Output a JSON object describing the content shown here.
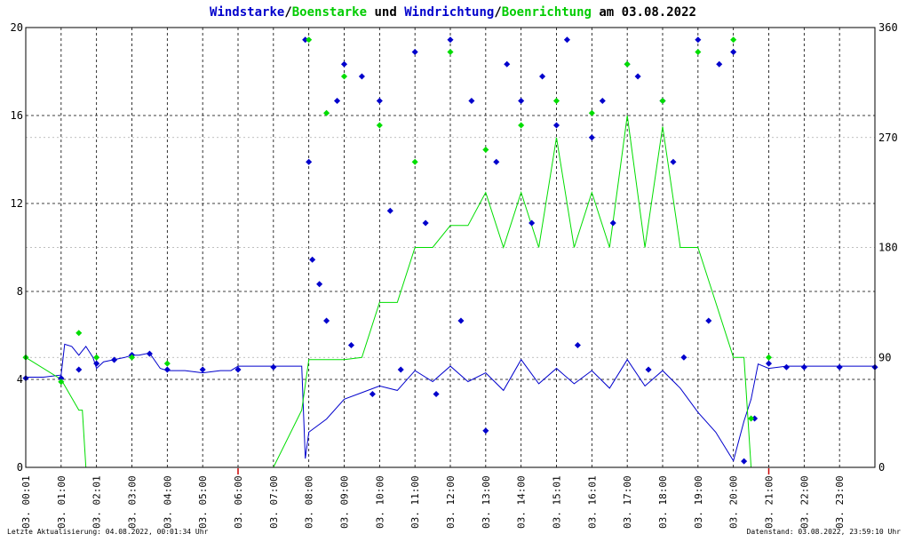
{
  "title_parts": [
    {
      "text": "Windstarke",
      "color": "#0000cc"
    },
    {
      "text": "/",
      "color": "#000000"
    },
    {
      "text": "Boenstarke",
      "color": "#00cc00"
    },
    {
      "text": " und ",
      "color": "#000000"
    },
    {
      "text": "Windrichtung",
      "color": "#0000cc"
    },
    {
      "text": "/",
      "color": "#000000"
    },
    {
      "text": "Boenrichtung",
      "color": "#00cc00"
    },
    {
      "text": " am 03.08.2022",
      "color": "#000000"
    }
  ],
  "footer": {
    "left": "Letzte Aktualisierung: 04.08.2022, 00:01:34 Uhr",
    "right": "Datenstand: 03.08.2022, 23:59:10 Uhr"
  },
  "colors": {
    "wind": "#0000cc",
    "gust": "#00dd00",
    "grid": "#000000",
    "minor_grid": "#aaaaaa",
    "marker": "#cc0000"
  },
  "chart_data": {
    "type": "line",
    "title": "Windstarke/Boenstarke und Windrichtung/Boenrichtung am 03.08.2022",
    "x_ticks": [
      "03. 00:01",
      "03. 01:00",
      "03. 02:01",
      "03. 03:00",
      "03. 04:00",
      "03. 05:00",
      "03. 06:00",
      "03. 07:00",
      "03. 08:00",
      "03. 09:00",
      "03. 10:00",
      "03. 11:00",
      "03. 12:00",
      "03. 13:00",
      "03. 14:00",
      "03. 15:01",
      "03. 16:01",
      "03. 17:00",
      "03. 18:00",
      "03. 19:00",
      "03. 20:00",
      "03. 21:00",
      "03. 22:00",
      "03. 23:00"
    ],
    "xlim_hours": [
      0,
      24
    ],
    "y_left": {
      "ticks": [
        "0",
        "4",
        "8",
        "12",
        "16",
        "20"
      ],
      "ylim": [
        0,
        20
      ]
    },
    "y_right": {
      "ticks": [
        "0",
        "90",
        "180",
        "270",
        "360"
      ],
      "ylim": [
        0,
        360
      ]
    },
    "grid": true,
    "series": [
      {
        "name": "Windstarke",
        "color": "#0000cc",
        "axis": "left",
        "x": [
          0.0,
          0.5,
          1.0,
          1.1,
          1.3,
          1.5,
          1.6,
          1.7,
          1.9,
          2.0,
          2.2,
          2.5,
          2.8,
          3.0,
          3.2,
          3.5,
          3.8,
          4.0,
          4.5,
          5.0,
          5.5,
          5.8,
          6.0,
          6.5,
          7.0,
          7.5,
          7.8,
          7.9,
          8.0,
          8.5,
          9.0,
          9.5,
          10.0,
          10.5,
          11.0,
          11.5,
          12.0,
          12.5,
          13.0,
          13.5,
          14.0,
          14.5,
          15.0,
          15.5,
          16.0,
          16.5,
          17.0,
          17.5,
          18.0,
          18.5,
          19.0,
          19.5,
          20.0,
          20.3,
          20.5,
          20.7,
          21.0,
          21.5,
          22.0,
          22.5,
          23.0,
          23.5,
          24.0
        ],
        "y": [
          4.1,
          4.1,
          4.2,
          5.6,
          5.5,
          5.1,
          5.3,
          5.5,
          5.0,
          4.5,
          4.8,
          4.9,
          5.0,
          5.1,
          5.1,
          5.2,
          4.5,
          4.4,
          4.4,
          4.3,
          4.4,
          4.4,
          4.6,
          4.6,
          4.6,
          4.6,
          4.6,
          0.4,
          1.6,
          2.2,
          3.1,
          3.4,
          3.7,
          3.5,
          4.4,
          3.9,
          4.6,
          3.9,
          4.3,
          3.5,
          4.9,
          3.8,
          4.5,
          3.8,
          4.4,
          3.6,
          4.9,
          3.7,
          4.4,
          3.6,
          2.5,
          1.6,
          0.3,
          2.1,
          3.1,
          4.7,
          4.5,
          4.6,
          4.6,
          4.6,
          4.6,
          4.6,
          4.6
        ]
      },
      {
        "name": "Boenstarke",
        "color": "#00dd00",
        "axis": "left",
        "x": [
          0.0,
          1.0,
          1.5,
          1.6,
          1.7,
          2.0,
          3.0,
          4.0,
          5.0,
          6.0,
          7.0,
          7.8,
          8.0,
          8.5,
          9.0,
          9.5,
          10.0,
          10.5,
          11.0,
          11.5,
          12.0,
          12.5,
          13.0,
          13.5,
          14.0,
          14.5,
          15.0,
          15.5,
          16.0,
          16.5,
          17.0,
          17.5,
          18.0,
          18.5,
          19.0,
          19.5,
          20.0,
          20.3,
          20.5,
          21.0
        ],
        "y": [
          5.0,
          4.0,
          2.6,
          2.6,
          0.0,
          0.0,
          0.0,
          0.0,
          0.0,
          0.0,
          0.0,
          2.6,
          4.9,
          4.9,
          4.9,
          5.0,
          7.5,
          7.5,
          10.0,
          10.0,
          11.0,
          11.0,
          12.5,
          10.0,
          12.5,
          10.0,
          15.0,
          10.0,
          12.5,
          10.0,
          16.0,
          10.0,
          15.5,
          10.0,
          10.0,
          7.5,
          5.0,
          5.0,
          0.0,
          0.0
        ]
      },
      {
        "name": "Windrichtung",
        "color": "#0000cc",
        "axis": "right",
        "kind": "points",
        "x": [
          0.0,
          1.0,
          1.5,
          2.0,
          2.5,
          3.0,
          3.5,
          4.0,
          5.0,
          6.0,
          7.0,
          7.9,
          8.0,
          8.1,
          8.3,
          8.5,
          8.8,
          9.0,
          9.2,
          9.5,
          9.8,
          10.0,
          10.3,
          10.6,
          11.0,
          11.3,
          11.6,
          12.0,
          12.3,
          12.6,
          13.0,
          13.3,
          13.6,
          14.0,
          14.3,
          14.6,
          15.0,
          15.3,
          15.6,
          16.0,
          16.3,
          16.6,
          17.0,
          17.3,
          17.6,
          18.0,
          18.3,
          18.6,
          19.0,
          19.3,
          19.6,
          20.0,
          20.3,
          20.6,
          21.0,
          21.5,
          22.0,
          23.0,
          24.0
        ],
        "y": [
          73,
          73,
          80,
          85,
          88,
          92,
          93,
          80,
          80,
          80,
          82,
          350,
          250,
          170,
          150,
          120,
          300,
          330,
          100,
          320,
          60,
          300,
          210,
          80,
          340,
          200,
          60,
          350,
          120,
          300,
          30,
          250,
          330,
          300,
          200,
          320,
          280,
          350,
          100,
          270,
          300,
          200,
          330,
          320,
          80,
          300,
          250,
          90,
          350,
          120,
          330,
          340,
          5,
          40,
          85,
          82,
          82,
          82,
          82
        ]
      },
      {
        "name": "Boenrichtung",
        "color": "#00dd00",
        "axis": "right",
        "kind": "points",
        "x": [
          0.0,
          1.0,
          1.5,
          2.0,
          3.0,
          4.0,
          8.0,
          8.5,
          9.0,
          10.0,
          11.0,
          12.0,
          13.0,
          14.0,
          15.0,
          16.0,
          17.0,
          18.0,
          19.0,
          20.0,
          20.5,
          21.0
        ],
        "y": [
          90,
          70,
          110,
          90,
          90,
          85,
          350,
          290,
          320,
          280,
          250,
          340,
          260,
          280,
          300,
          290,
          330,
          300,
          340,
          350,
          40,
          90
        ]
      }
    ]
  }
}
